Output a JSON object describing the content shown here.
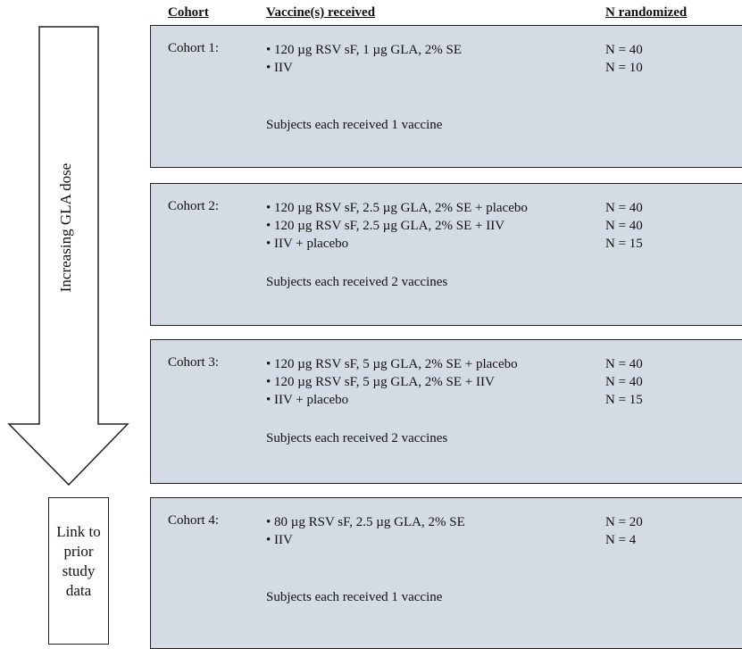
{
  "headers": {
    "cohort": "Cohort",
    "vaccines": "Vaccine(s) received",
    "n": "N randomized"
  },
  "arrow_label": "Increasing GLA dose",
  "link_box": "Link to\nprior\nstudy\ndata",
  "cohorts": [
    {
      "name": "Cohort 1:",
      "vaccines": [
        "• 120 µg RSV sF, 1 µg GLA, 2% SE",
        "• IIV"
      ],
      "n": [
        "N = 40",
        "N = 10"
      ],
      "note": "Subjects each received 1 vaccine"
    },
    {
      "name": "Cohort 2:",
      "vaccines": [
        "• 120 µg RSV sF, 2.5 µg GLA, 2% SE + placebo",
        "• 120 µg RSV sF, 2.5 µg GLA, 2% SE + IIV",
        "• IIV + placebo"
      ],
      "n": [
        "N = 40",
        "N = 40",
        "N = 15"
      ],
      "note": "Subjects each received 2 vaccines"
    },
    {
      "name": "Cohort 3:",
      "vaccines": [
        "• 120 µg RSV sF, 5 µg GLA, 2% SE + placebo",
        "• 120 µg RSV sF, 5 µg GLA, 2% SE + IIV",
        "• IIV + placebo"
      ],
      "n": [
        "N = 40",
        "N = 40",
        "N = 15"
      ],
      "note": "Subjects each received 2 vaccines"
    },
    {
      "name": "Cohort 4:",
      "vaccines": [
        "• 80 µg RSV sF, 2.5 µg GLA, 2% SE",
        "• IIV"
      ],
      "n": [
        "N = 20",
        "N = 4"
      ],
      "note": "Subjects each received 1 vaccine"
    }
  ],
  "colors": {
    "box_fill": "#d5dbe5",
    "border": "#222222",
    "text": "#111111"
  }
}
